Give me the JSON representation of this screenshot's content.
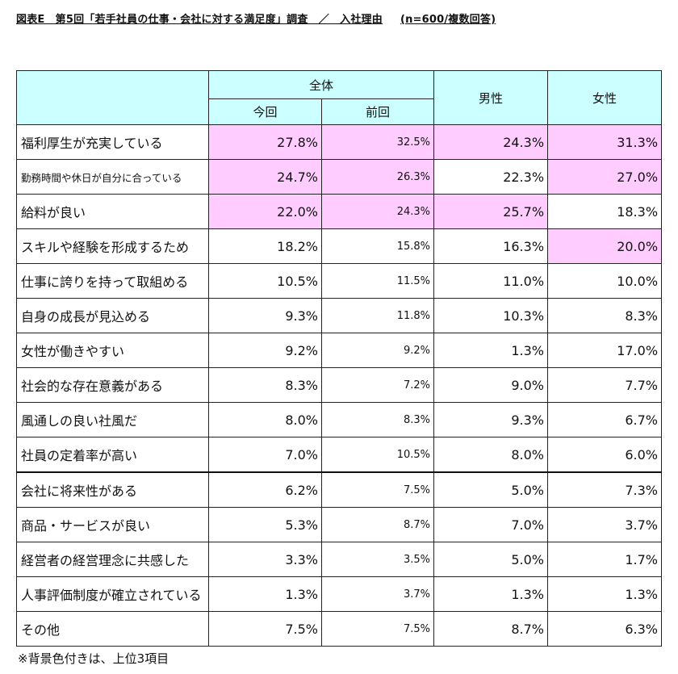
{
  "title": "図表E　第5回「若手社員の仕事・会社に対する満足度」調査　／　入社理由",
  "subtitle": "(n=600/複数回答)",
  "headers": {
    "overall": "全体",
    "current": "今回",
    "previous": "前回",
    "male": "男性",
    "female": "女性"
  },
  "rows": [
    {
      "label": "福利厚生が充実している",
      "current": "27.8%",
      "previous": "32.5%",
      "male": "24.3%",
      "female": "31.3%"
    },
    {
      "label": "勤務時間や休日が自分に合っている",
      "current": "24.7%",
      "previous": "26.3%",
      "male": "22.3%",
      "female": "27.0%"
    },
    {
      "label": "給料が良い",
      "current": "22.0%",
      "previous": "24.3%",
      "male": "25.7%",
      "female": "18.3%"
    },
    {
      "label": "スキルや経験を形成するため",
      "current": "18.2%",
      "previous": "15.8%",
      "male": "16.3%",
      "female": "20.0%"
    },
    {
      "label": "仕事に誇りを持って取組める",
      "current": "10.5%",
      "previous": "11.5%",
      "male": "11.0%",
      "female": "10.0%"
    },
    {
      "label": "自身の成長が見込める",
      "current": "9.3%",
      "previous": "11.8%",
      "male": "10.3%",
      "female": "8.3%"
    },
    {
      "label": "女性が働きやすい",
      "current": "9.2%",
      "previous": "9.2%",
      "male": "1.3%",
      "female": "17.0%"
    },
    {
      "label": "社会的な存在意義がある",
      "current": "8.3%",
      "previous": "7.2%",
      "male": "9.0%",
      "female": "7.7%"
    },
    {
      "label": "風通しの良い社風だ",
      "current": "8.0%",
      "previous": "8.3%",
      "male": "9.3%",
      "female": "6.7%"
    },
    {
      "label": "社員の定着率が高い",
      "current": "7.0%",
      "previous": "10.5%",
      "male": "8.0%",
      "female": "6.0%"
    },
    {
      "label": "会社に将来性がある",
      "current": "6.2%",
      "previous": "7.5%",
      "male": "5.0%",
      "female": "7.3%"
    },
    {
      "label": "商品・サービスが良い",
      "current": "5.3%",
      "previous": "8.7%",
      "male": "7.0%",
      "female": "3.7%"
    },
    {
      "label": "経営者の経営理念に共感した",
      "current": "3.3%",
      "previous": "3.5%",
      "male": "5.0%",
      "female": "1.7%"
    },
    {
      "label": "人事評価制度が確立されている",
      "current": "1.3%",
      "previous": "3.7%",
      "male": "1.3%",
      "female": "1.3%"
    },
    {
      "label": "その他",
      "current": "7.5%",
      "previous": "7.5%",
      "male": "8.7%",
      "female": "6.3%"
    }
  ],
  "highlight_color": "#ffccff",
  "header_color": "#ccffff",
  "note": "※背景色付きは、上位3項目"
}
